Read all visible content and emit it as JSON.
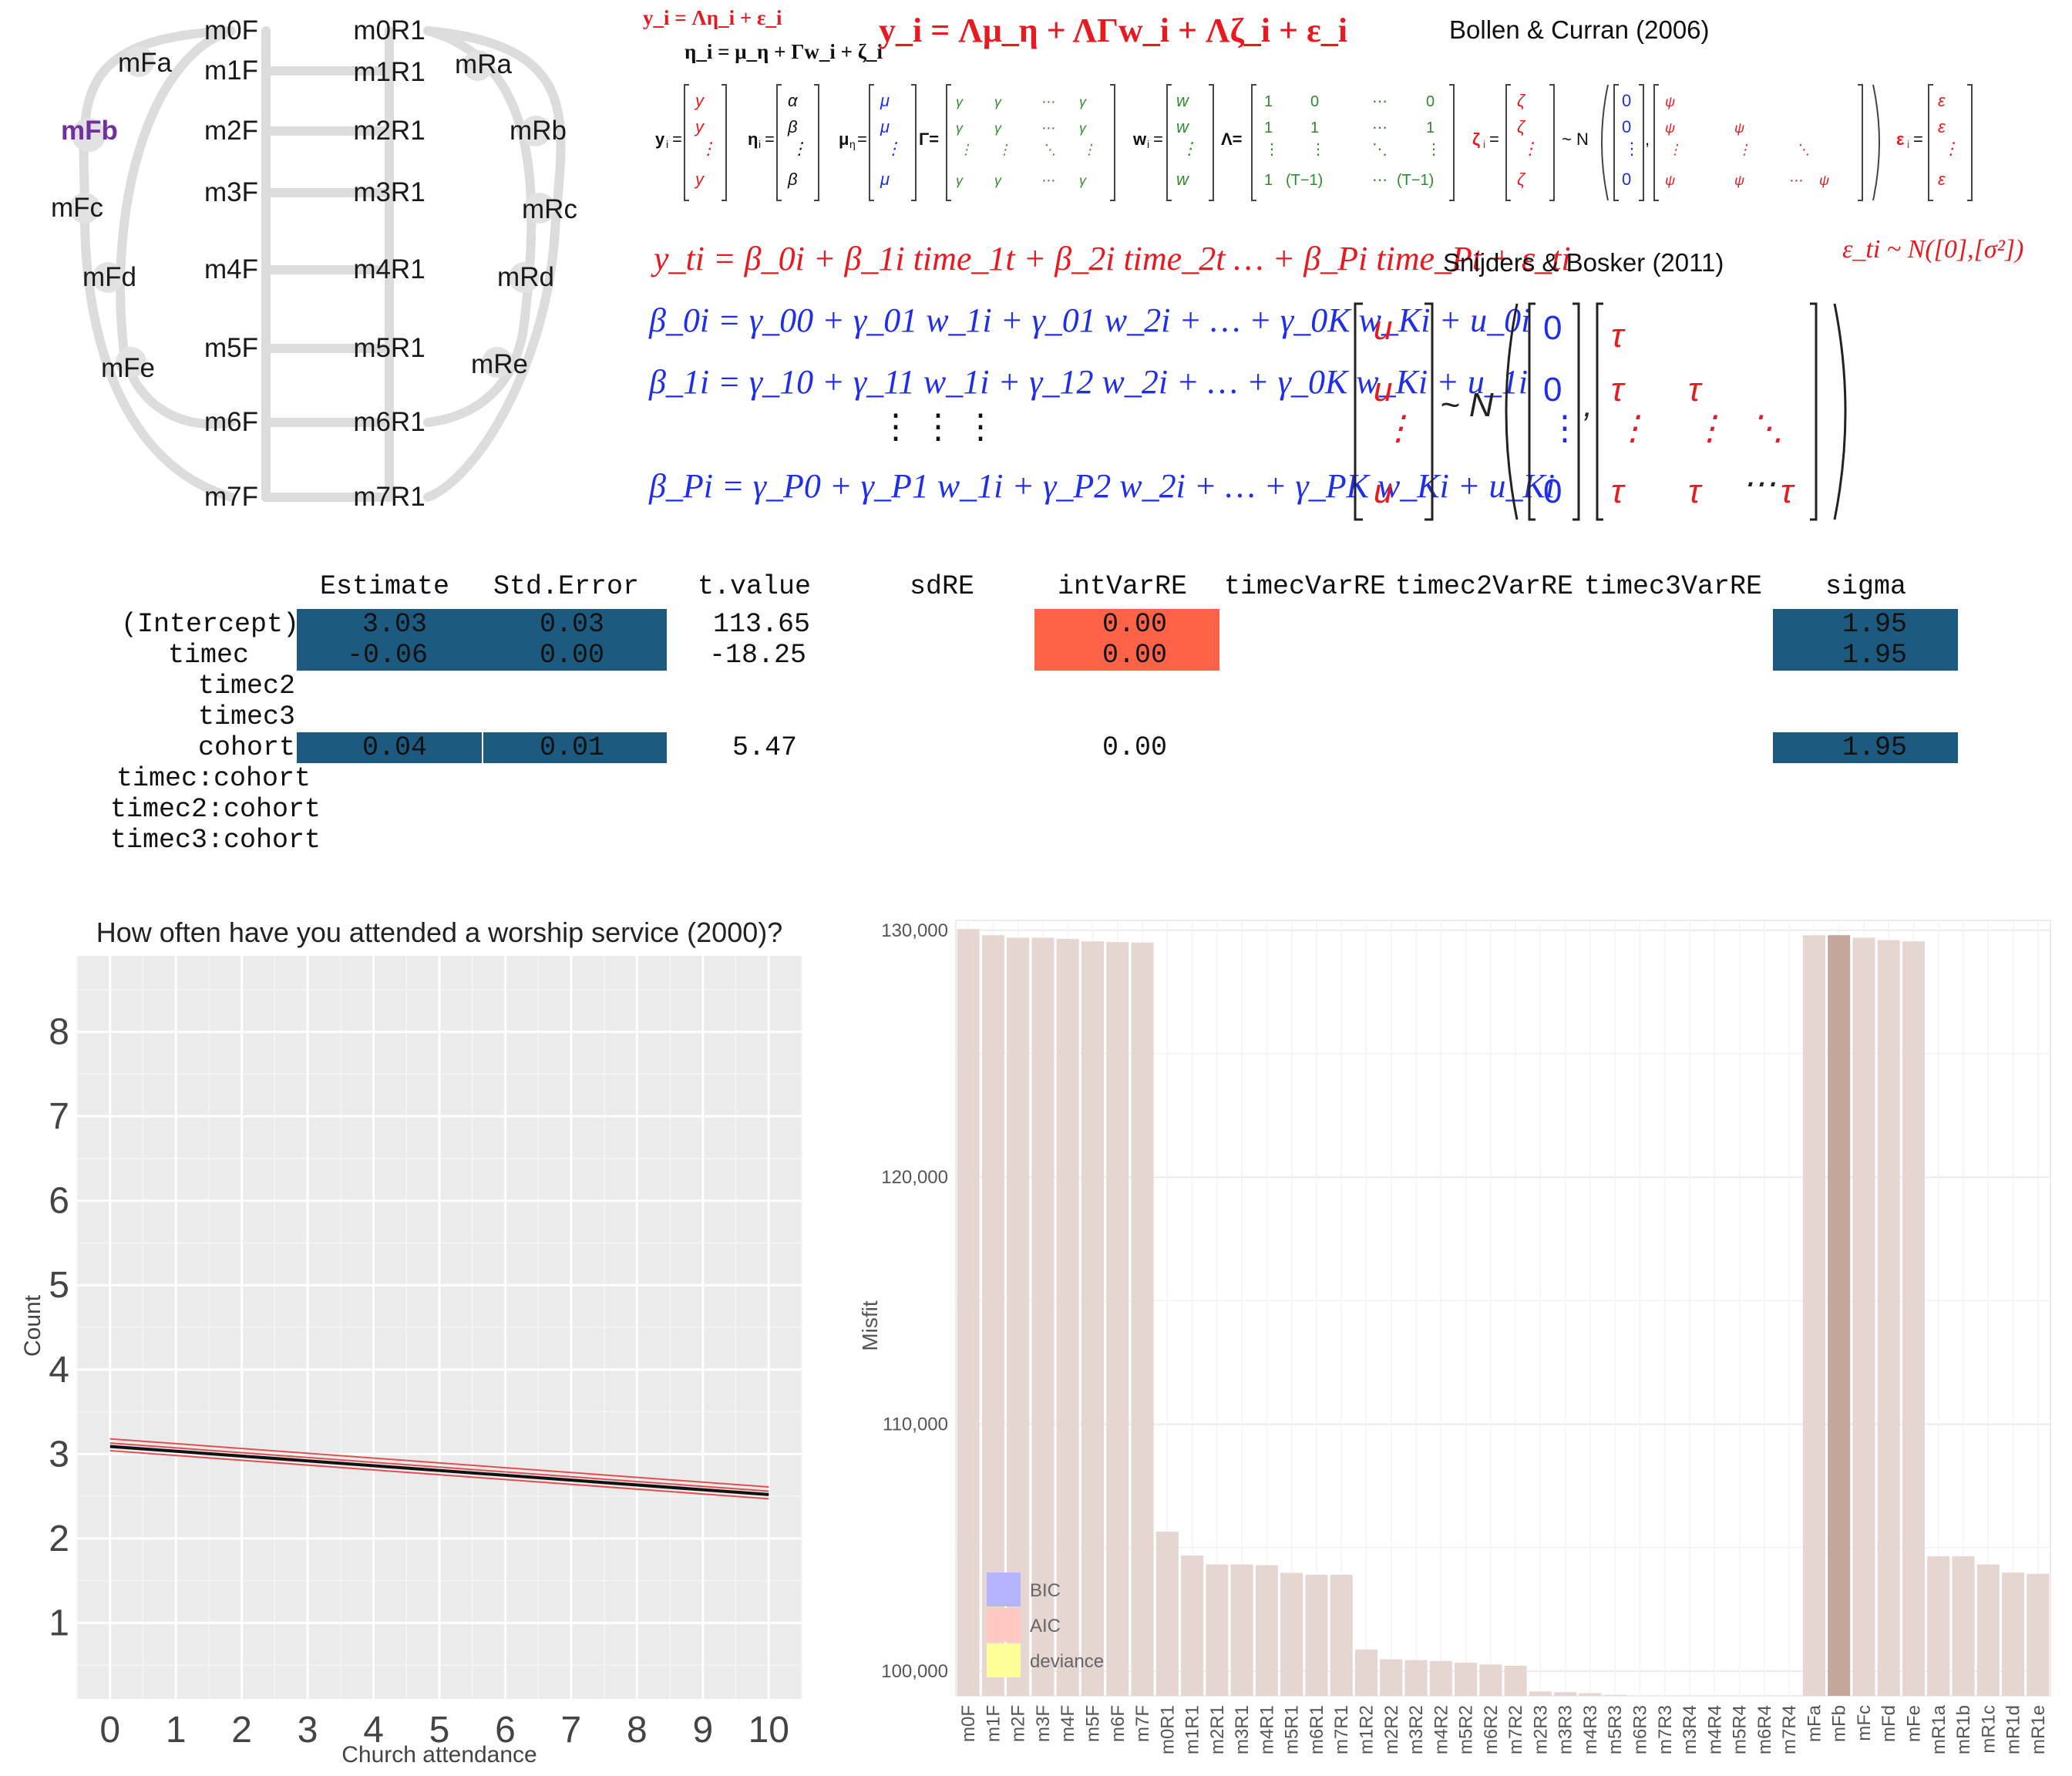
{
  "model_map": {
    "left_column": [
      "m0F",
      "m1F",
      "m2F",
      "m3F",
      "m4F",
      "m5F",
      "m6F",
      "m7F"
    ],
    "right_column": [
      "m0R1",
      "m1R1",
      "m2R1",
      "m3R1",
      "m4R1",
      "m5R1",
      "m6R1",
      "m7R1"
    ],
    "left_arc": [
      "mFa",
      "mFb",
      "mFc",
      "mFd",
      "mFe"
    ],
    "right_arc": [
      "mRa",
      "mRb",
      "mRc",
      "mRd",
      "mRe"
    ],
    "selected": "mFb",
    "selected_color": "#7030a0"
  },
  "equations": {
    "citation_1": "Bollen & Curran (2006)",
    "citation_2": "Snijders & Bosker (2011)",
    "bc_small_1": "y_i = Λη_i + ε_i",
    "bc_small_2": "η_i = μ_η + Γw_i + ζ_i",
    "bc_main": "y_i = Λμ_η + ΛΓw_i + Λζ_i + ε_i",
    "sb_level1": "y_ti = β_0i + β_1i time_1t + β_2i time_2t … + β_Pi time_Pt + ε_ti",
    "sb_beta0": "β_0i = γ_00 + γ_01 w_1i + γ_01 w_2i + … + γ_0K w_Ki + u_0i",
    "sb_beta1": "β_1i = γ_10 + γ_11 w_1i + γ_12 w_2i + … + γ_0K w_Ki + u_1i",
    "sb_betaP": "β_Pi = γ_P0 + γ_P1 w_1i + γ_P2 w_2i + … + γ_PK w_Ki + u_Ki",
    "sb_error": "ε_ti ~ N([0],[σ²])"
  },
  "results_table": {
    "columns": [
      "Estimate",
      "Std.Error",
      "t.value",
      "sdRE",
      "intVarRE",
      "timecVarRE",
      "timec2VarRE",
      "timec3VarRE",
      "sigma"
    ],
    "rows": [
      {
        "name": "(Intercept)",
        "estimate": "3.03",
        "std_error": "0.03",
        "t_value": "113.65",
        "int_var_re": "0.00",
        "sigma": "1.95"
      },
      {
        "name": "timec",
        "estimate": "-0.06",
        "std_error": "0.00",
        "t_value": "-18.25",
        "int_var_re": "0.00",
        "sigma": "1.95"
      },
      {
        "name": "timec2"
      },
      {
        "name": "timec3"
      },
      {
        "name": "cohort",
        "estimate": "0.04",
        "std_error": "0.01",
        "t_value": "5.47",
        "int_var_re": "0.00",
        "sigma": "1.95"
      },
      {
        "name": "timec:cohort"
      },
      {
        "name": "timec2:cohort"
      },
      {
        "name": "timec3:cohort"
      }
    ],
    "highlight_blue": "#1c5a80",
    "highlight_orange": "#ff6347"
  },
  "chart_data": [
    {
      "type": "line",
      "title": "How often have you attended a worship service (2000)?",
      "xlabel": "Church attendance",
      "ylabel": "Count",
      "xlim": [
        -0.5,
        10.5
      ],
      "ylim": [
        0.1,
        8.9
      ],
      "x_ticks": [
        "0",
        "1",
        "2",
        "3",
        "4",
        "5",
        "6",
        "7",
        "8",
        "9",
        "10"
      ],
      "y_ticks": [
        "1",
        "2",
        "3",
        "4",
        "5",
        "6",
        "7",
        "8"
      ],
      "series": [
        {
          "x": [
            0,
            10
          ],
          "y": [
            3.09,
            2.52
          ],
          "color": "#111111"
        },
        {
          "x": [
            0,
            10
          ],
          "y": [
            3.18,
            2.61
          ],
          "color": "#e05050"
        },
        {
          "x": [
            0,
            10
          ],
          "y": [
            3.13,
            2.56
          ],
          "color": "#e05050"
        },
        {
          "x": [
            0,
            10
          ],
          "y": [
            3.04,
            2.47
          ],
          "color": "#e05050"
        }
      ],
      "grid": true,
      "panel_color": "#ebebeb"
    },
    {
      "type": "bar",
      "title": "",
      "xlabel": "",
      "ylabel": "Misfit",
      "ylim": [
        99000,
        130400
      ],
      "y_ticks": [
        "100,000",
        "110,000",
        "120,000",
        "130,000"
      ],
      "categories": [
        "m0F",
        "m1F",
        "m2F",
        "m3F",
        "m4F",
        "m5F",
        "m6F",
        "m7F",
        "m0R1",
        "m1R1",
        "m2R1",
        "m3R1",
        "m4R1",
        "m5R1",
        "m6R1",
        "m7R1",
        "m1R2",
        "m2R2",
        "m3R2",
        "m4R2",
        "m5R2",
        "m6R2",
        "m7R2",
        "m2R3",
        "m3R3",
        "m4R3",
        "m5R3",
        "m6R3",
        "m7R3",
        "m3R4",
        "m4R4",
        "m5R4",
        "m6R4",
        "m7R4",
        "mFa",
        "mFb",
        "mFc",
        "mFd",
        "mFe",
        "mR1a",
        "mR1b",
        "mR1c",
        "mR1d",
        "mR1e"
      ],
      "values": [
        130050,
        129800,
        129700,
        129700,
        129650,
        129550,
        129520,
        129500,
        105650,
        104680,
        104320,
        104320,
        104290,
        103980,
        103900,
        103900,
        100880,
        100480,
        100450,
        100410,
        100340,
        100270,
        100220,
        99180,
        99150,
        99110,
        99040,
        99000,
        98970,
        98940,
        98910,
        98870,
        98840,
        98800,
        129800,
        129800,
        129700,
        129600,
        129550,
        104650,
        104650,
        104320,
        103990,
        103940
      ],
      "selected": "mFb",
      "bar_color": "#e5d6d1",
      "selected_color": "#c4a69a",
      "legend": [
        "BIC",
        "AIC",
        "deviance"
      ],
      "legend_colors": [
        "#b4b4ff",
        "#ffc8c0",
        "#ffff9a"
      ],
      "legend_position": "bottom-left",
      "grid": true
    }
  ]
}
